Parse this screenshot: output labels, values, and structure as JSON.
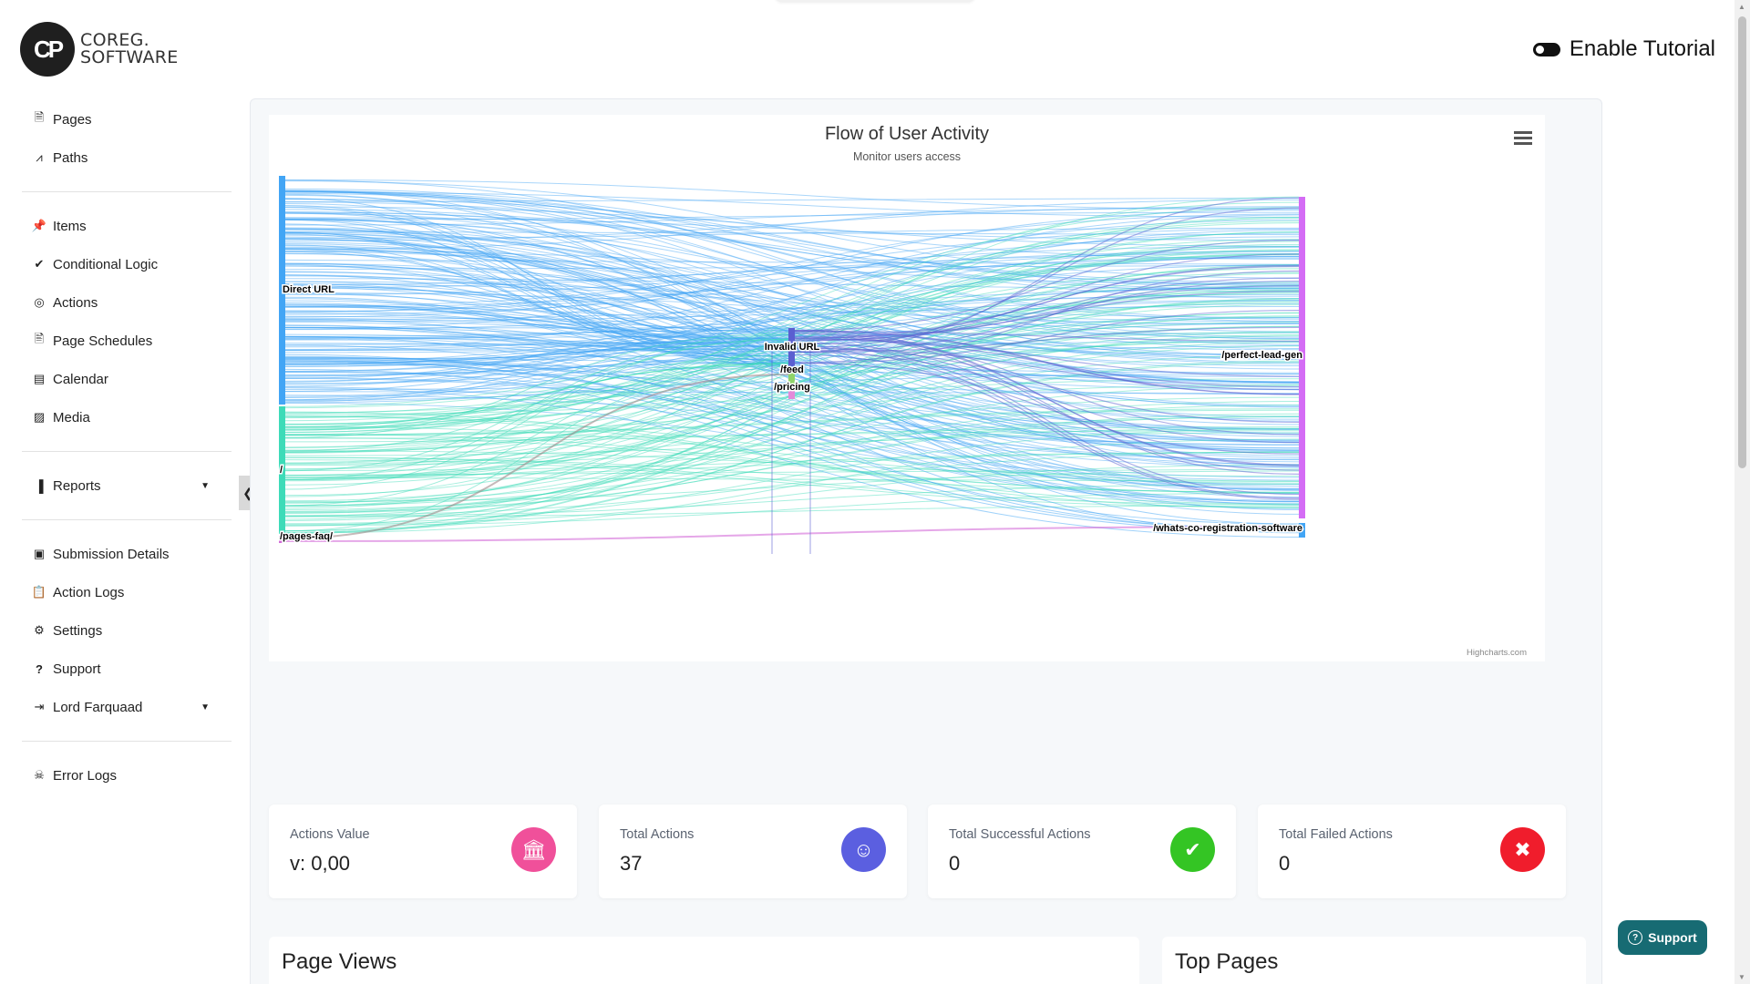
{
  "brand": {
    "mark": "CP",
    "line1": "COREG.",
    "line2": "SOFTWARE"
  },
  "header": {
    "tutorial_label": "Enable Tutorial"
  },
  "sidebar": {
    "group1": [
      {
        "label": "Pages",
        "icon": "file-icon"
      },
      {
        "label": "Paths",
        "icon": "road-icon"
      }
    ],
    "group2": [
      {
        "label": "Items",
        "icon": "thumbtack-icon"
      },
      {
        "label": "Conditional Logic",
        "icon": "check-double-icon"
      },
      {
        "label": "Actions",
        "icon": "bullseye-icon"
      },
      {
        "label": "Page Schedules",
        "icon": "file-alt-icon"
      },
      {
        "label": "Calendar",
        "icon": "calendar-icon"
      },
      {
        "label": "Media",
        "icon": "image-icon"
      }
    ],
    "group3": [
      {
        "label": "Reports",
        "icon": "chart-bar-icon"
      }
    ],
    "group4": [
      {
        "label": "Submission Details",
        "icon": "id-card-icon"
      },
      {
        "label": "Action Logs",
        "icon": "clipboard-icon"
      },
      {
        "label": "Settings",
        "icon": "cogs-icon"
      },
      {
        "label": "Support",
        "icon": "question-icon"
      },
      {
        "label": "Lord Farquaad",
        "icon": "sign-out-icon"
      }
    ],
    "group5": [
      {
        "label": "Error Logs",
        "icon": "bug-icon"
      }
    ]
  },
  "chart": {
    "title": "Flow of User Activity",
    "subtitle": "Monitor users access",
    "credits": "Highcharts.com"
  },
  "chart_data": {
    "type": "sankey",
    "title": "Flow of User Activity",
    "subtitle": "Monitor users access",
    "nodes": [
      {
        "name": "Direct URL",
        "column": 0,
        "color": "#42a5f5"
      },
      {
        "name": "/",
        "column": 0,
        "color": "#3ddbb8"
      },
      {
        "name": "/pages-faq/",
        "column": 0,
        "color": "#d46cd9"
      },
      {
        "name": "Invalid URL",
        "column": 1,
        "color": "#5b5fd1"
      },
      {
        "name": "/feed",
        "column": 1,
        "color": "#8fd46a"
      },
      {
        "name": "/pricing",
        "column": 1,
        "color": "#e38ad9"
      },
      {
        "name": "/perfect-lead-gen",
        "column": 2,
        "color": "#d46cf5"
      },
      {
        "name": "/whats-co-registration-software",
        "column": 2,
        "color": "#42a5f5"
      }
    ]
  },
  "stats": [
    {
      "label": "Actions Value",
      "value": "v: 0,00",
      "icon": "bank-icon",
      "color": "#f0509a"
    },
    {
      "label": "Total Actions",
      "value": "37",
      "icon": "user-cog-icon",
      "color": "#5b5fe0"
    },
    {
      "label": "Total Successful Actions",
      "value": "0",
      "icon": "check-icon",
      "color": "#34c524"
    },
    {
      "label": "Total Failed Actions",
      "value": "0",
      "icon": "close-icon",
      "color": "#f01d2c"
    }
  ],
  "sections": {
    "page_views": "Page Views",
    "top_pages": "Top Pages"
  },
  "support_button": {
    "label": "Support"
  }
}
